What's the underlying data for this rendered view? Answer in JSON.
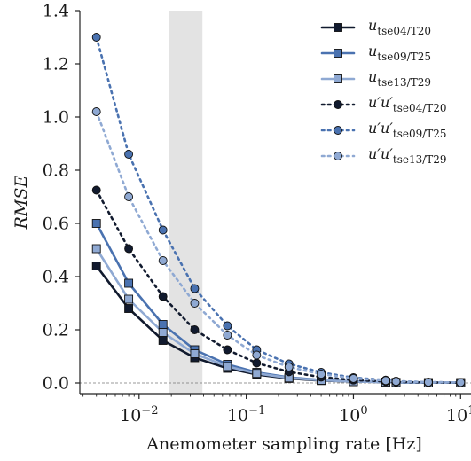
{
  "chart_data": {
    "type": "line",
    "xlabel": "Anemometer sampling rate [Hz]",
    "ylabel": "RMSE",
    "xscale": "log",
    "xlim": [
      0.0028,
      12.5
    ],
    "ylim": [
      -0.04,
      1.4
    ],
    "grid": false,
    "legend_position": "top-right",
    "y_ticks": [
      "0.0",
      "0.2",
      "0.4",
      "0.6",
      "0.8",
      "1.0",
      "1.2",
      "1.4"
    ],
    "x_ticks": [
      {
        "base": "10",
        "exp": "−2"
      },
      {
        "base": "10",
        "exp": "−1"
      },
      {
        "base": "10",
        "exp": "0"
      },
      {
        "base": "10",
        "exp": "1"
      }
    ],
    "shaded_region_x": [
      0.019,
      0.039
    ],
    "reference_line_y": 0,
    "x": [
      0.004,
      0.008,
      0.0167,
      0.033,
      0.0667,
      0.125,
      0.25,
      0.5,
      1.0,
      2.0,
      2.5,
      5.0,
      10.0
    ],
    "series": [
      {
        "name": "u",
        "sub": "tse04/T20",
        "style": "solid",
        "marker": "square",
        "color": "#111a2e",
        "values": [
          0.44,
          0.28,
          0.16,
          0.095,
          0.055,
          0.032,
          0.017,
          0.009,
          0.005,
          0.003,
          0.002,
          0.001,
          0.001
        ]
      },
      {
        "name": "u",
        "sub": "tse09/T25",
        "style": "solid",
        "marker": "square",
        "color": "#4a72b0",
        "values": [
          0.6,
          0.375,
          0.22,
          0.125,
          0.07,
          0.04,
          0.021,
          0.011,
          0.006,
          0.003,
          0.002,
          0.001,
          0.001
        ]
      },
      {
        "name": "u",
        "sub": "tse13/T29",
        "style": "solid",
        "marker": "square",
        "color": "#8fa9d3",
        "values": [
          0.505,
          0.315,
          0.19,
          0.11,
          0.062,
          0.036,
          0.019,
          0.01,
          0.005,
          0.003,
          0.002,
          0.001,
          0.001
        ]
      },
      {
        "name": "u′u′",
        "sub": "tse04/T20",
        "style": "dotted",
        "marker": "circle",
        "color": "#111a2e",
        "values": [
          0.725,
          0.505,
          0.325,
          0.2,
          0.125,
          0.075,
          0.042,
          0.022,
          0.011,
          0.006,
          0.004,
          0.002,
          0.001
        ]
      },
      {
        "name": "u′u′",
        "sub": "tse09/T25",
        "style": "dotted",
        "marker": "circle",
        "color": "#4a72b0",
        "values": [
          1.3,
          0.86,
          0.575,
          0.355,
          0.215,
          0.125,
          0.072,
          0.04,
          0.02,
          0.011,
          0.007,
          0.003,
          0.002
        ]
      },
      {
        "name": "u′u′",
        "sub": "tse13/T29",
        "style": "dotted",
        "marker": "circle",
        "color": "#8fa9d3",
        "values": [
          1.02,
          0.7,
          0.46,
          0.3,
          0.18,
          0.105,
          0.06,
          0.033,
          0.017,
          0.009,
          0.006,
          0.003,
          0.002
        ]
      }
    ]
  }
}
